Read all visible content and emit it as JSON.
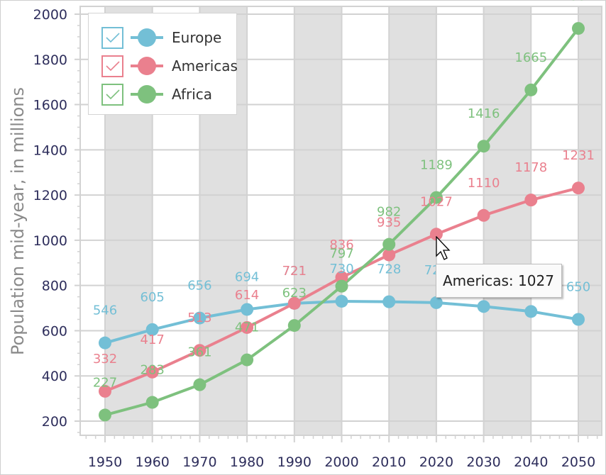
{
  "chart_data": {
    "type": "line",
    "title": "",
    "xlabel": "",
    "ylabel": "Population mid-year, in millions",
    "x": [
      1950,
      1960,
      1970,
      1980,
      1990,
      2000,
      2010,
      2020,
      2030,
      2040,
      2050
    ],
    "x_tick_labels": [
      "1950",
      "1960",
      "1970",
      "1980",
      "1990",
      "2000",
      "2010",
      "2020",
      "2030",
      "2040",
      "2050"
    ],
    "y_tick_labels": [
      "200",
      "400",
      "600",
      "800",
      "1000",
      "1200",
      "1400",
      "1600",
      "1800",
      "2000"
    ],
    "y_ticks": [
      200,
      400,
      600,
      800,
      1000,
      1200,
      1400,
      1600,
      1800,
      2000
    ],
    "xlim": [
      1944.7,
      2054.9
    ],
    "ylim": [
      137,
      2035
    ],
    "grid": true,
    "alternating_bands": true,
    "legend_position": "top-left",
    "series": [
      {
        "name": "Europe",
        "color": "#73bfd6",
        "values": [
          546,
          605,
          656,
          694,
          721,
          730,
          728,
          724,
          707,
          685,
          650
        ],
        "labels_visible": [
          true,
          true,
          true,
          true,
          true,
          true,
          true,
          true,
          false,
          false,
          true
        ]
      },
      {
        "name": "Americas",
        "color": "#ea808e",
        "values": [
          332,
          417,
          513,
          614,
          721,
          836,
          935,
          1027,
          1110,
          1178,
          1231
        ],
        "labels_visible": [
          true,
          true,
          true,
          true,
          true,
          true,
          true,
          true,
          true,
          true,
          true
        ]
      },
      {
        "name": "Africa",
        "color": "#7ec17e",
        "values": [
          227,
          283,
          361,
          471,
          623,
          797,
          982,
          1189,
          1416,
          1665,
          1937
        ],
        "labels_visible": [
          true,
          true,
          true,
          true,
          true,
          true,
          true,
          true,
          true,
          true,
          true
        ]
      }
    ]
  },
  "legend": {
    "items": [
      {
        "label": "Europe",
        "checked": true,
        "color": "#73bfd6"
      },
      {
        "label": "Americas",
        "checked": true,
        "color": "#ea808e"
      },
      {
        "label": "Africa",
        "checked": true,
        "color": "#7ec17e"
      }
    ]
  },
  "tooltip": {
    "text": "Americas: 1027",
    "series": "Americas",
    "x": 2020
  },
  "colors": {
    "band": "#e0e0e0",
    "grid": "#d2d2d2",
    "axis_text": "#2e2e5c",
    "axis_title": "#8a8a8a"
  }
}
